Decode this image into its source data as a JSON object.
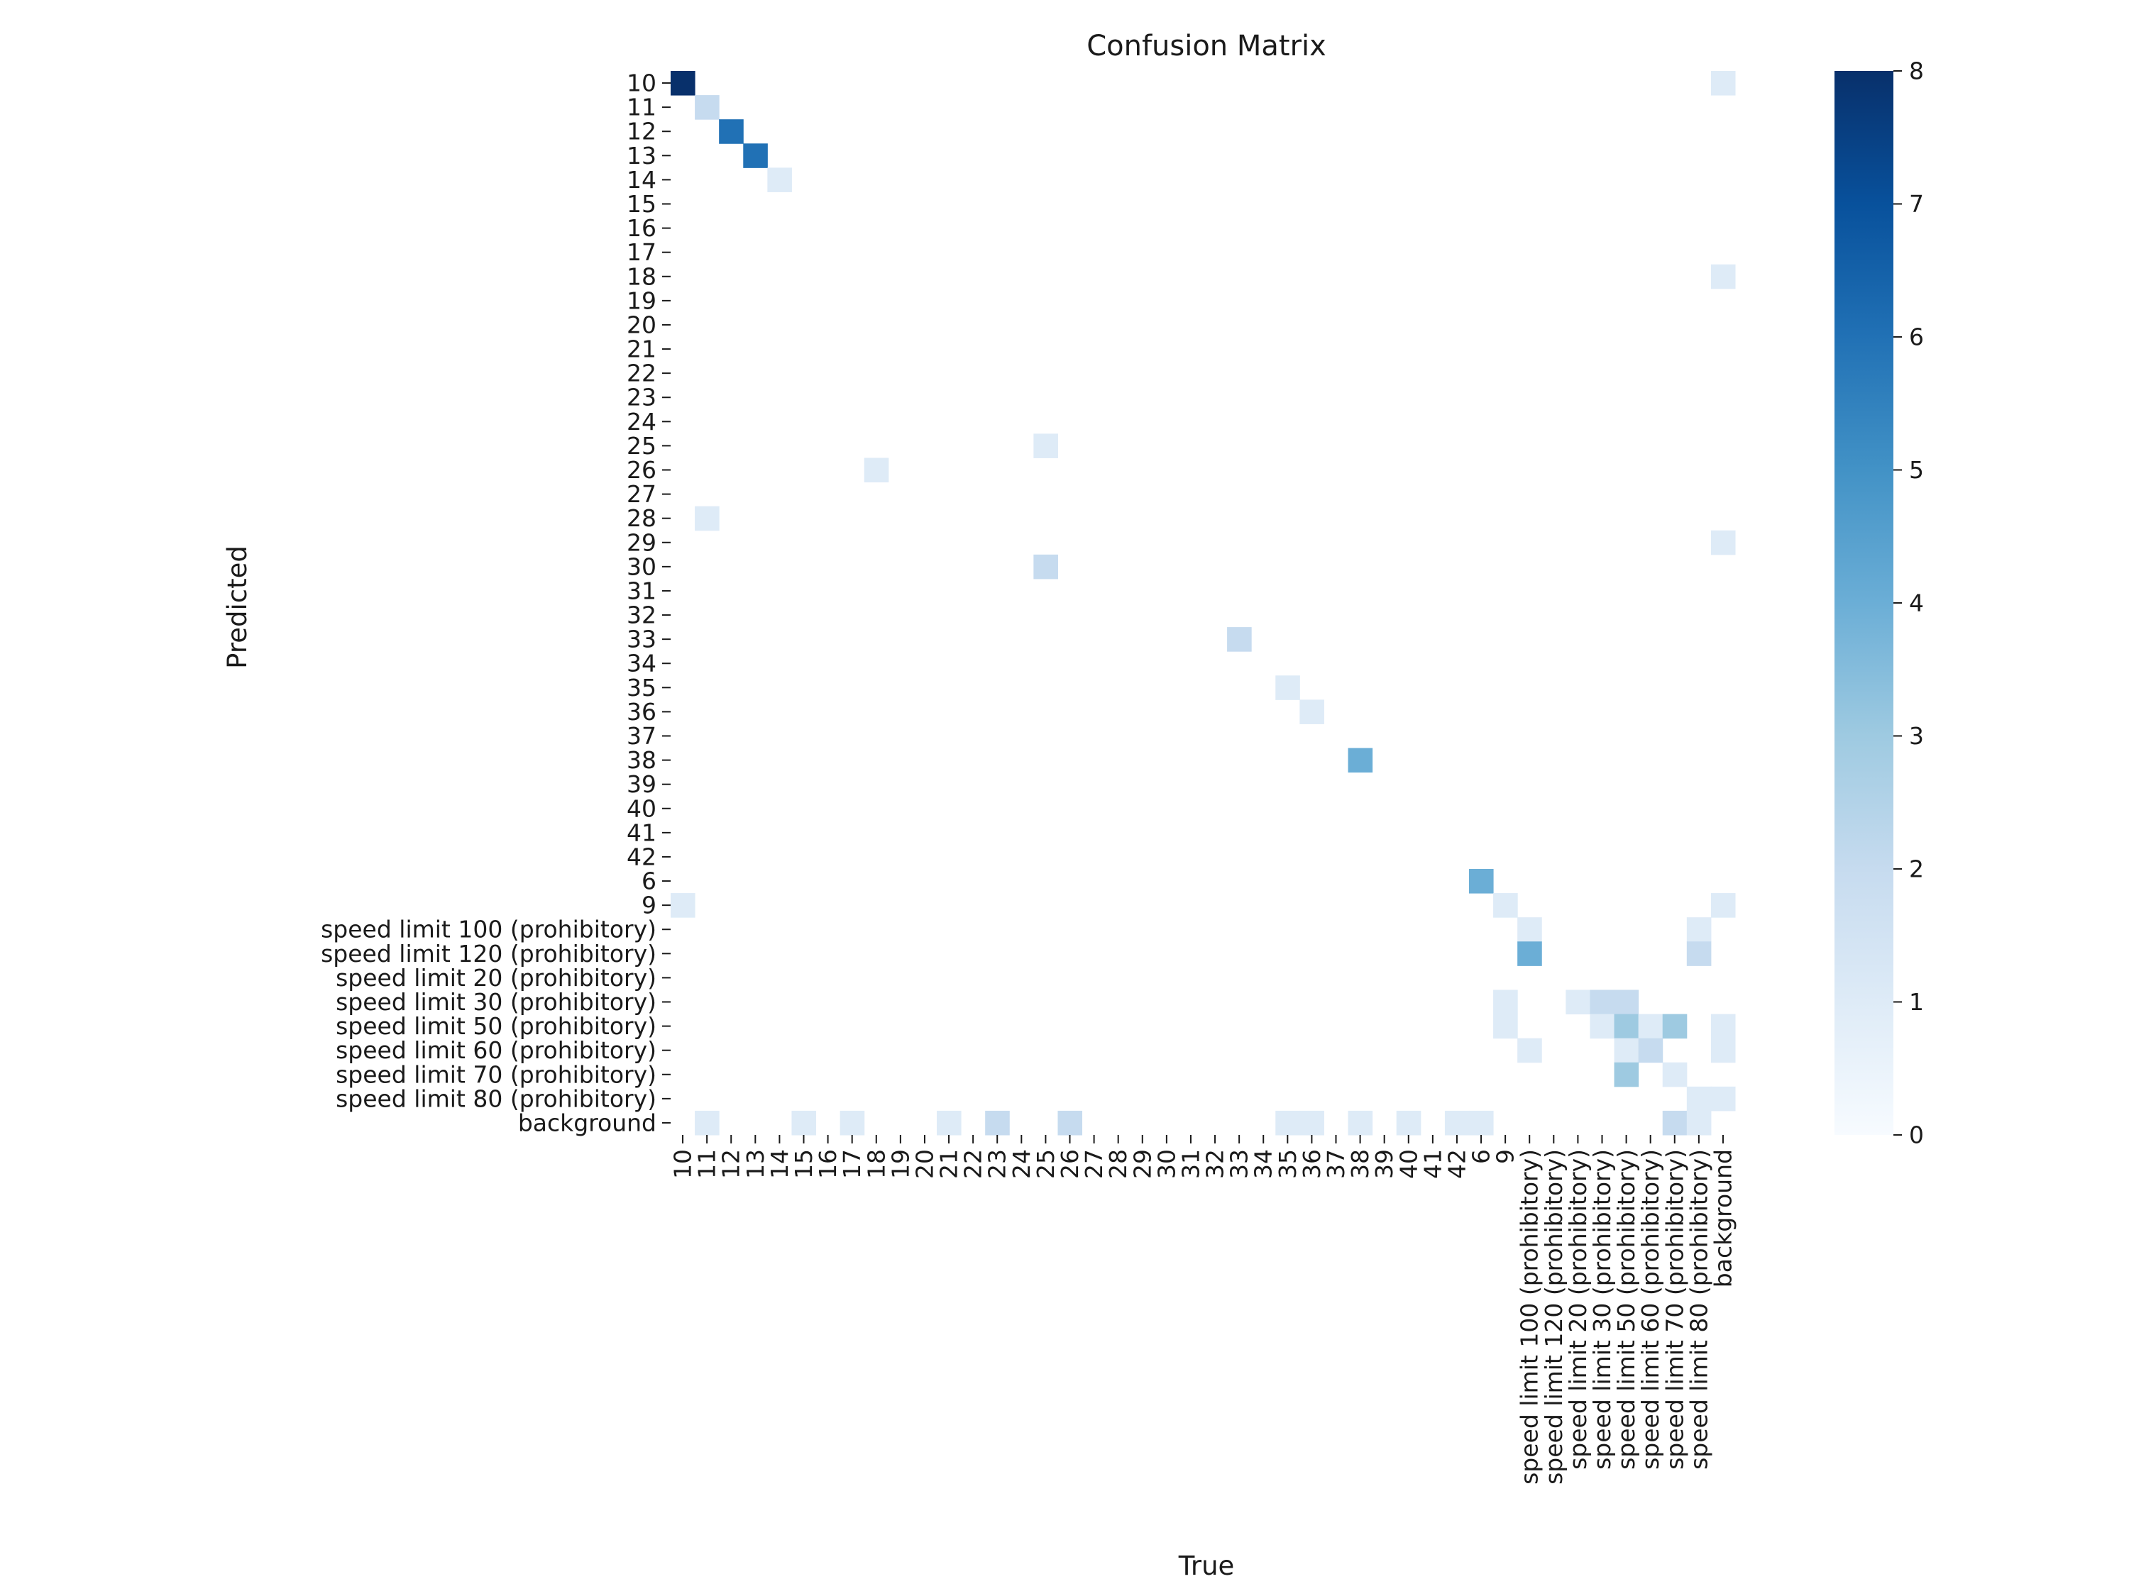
{
  "chart_data": {
    "type": "heatmap",
    "title": "Confusion Matrix",
    "xlabel": "True",
    "ylabel": "Predicted",
    "labels": [
      "10",
      "11",
      "12",
      "13",
      "14",
      "15",
      "16",
      "17",
      "18",
      "19",
      "20",
      "21",
      "22",
      "23",
      "24",
      "25",
      "26",
      "27",
      "28",
      "29",
      "30",
      "31",
      "32",
      "33",
      "34",
      "35",
      "36",
      "37",
      "38",
      "39",
      "40",
      "41",
      "42",
      "6",
      "9",
      "speed limit 100 (prohibitory)",
      "speed limit 120 (prohibitory)",
      "speed limit 20 (prohibitory)",
      "speed limit 30 (prohibitory)",
      "speed limit 50 (prohibitory)",
      "speed limit 60 (prohibitory)",
      "speed limit 70 (prohibitory)",
      "speed limit 80 (prohibitory)",
      "background"
    ],
    "colorbar": {
      "range": [
        0,
        8
      ],
      "ticks": [
        "0",
        "1",
        "2",
        "3",
        "4",
        "5",
        "6",
        "7",
        "8"
      ],
      "colormap": "Blues",
      "color_low": "#f7fbff",
      "color_high": "#08306b"
    },
    "cells": [
      {
        "predicted": "10",
        "true": "10",
        "value": 8
      },
      {
        "predicted": "10",
        "true": "background",
        "value": 1
      },
      {
        "predicted": "11",
        "true": "11",
        "value": 2
      },
      {
        "predicted": "12",
        "true": "12",
        "value": 6
      },
      {
        "predicted": "13",
        "true": "13",
        "value": 6
      },
      {
        "predicted": "14",
        "true": "14",
        "value": 1
      },
      {
        "predicted": "18",
        "true": "background",
        "value": 1
      },
      {
        "predicted": "25",
        "true": "25",
        "value": 1
      },
      {
        "predicted": "26",
        "true": "18",
        "value": 1
      },
      {
        "predicted": "28",
        "true": "11",
        "value": 1
      },
      {
        "predicted": "29",
        "true": "background",
        "value": 1
      },
      {
        "predicted": "30",
        "true": "25",
        "value": 2
      },
      {
        "predicted": "33",
        "true": "33",
        "value": 2
      },
      {
        "predicted": "35",
        "true": "35",
        "value": 1
      },
      {
        "predicted": "36",
        "true": "36",
        "value": 1
      },
      {
        "predicted": "38",
        "true": "38",
        "value": 4
      },
      {
        "predicted": "6",
        "true": "6",
        "value": 4
      },
      {
        "predicted": "9",
        "true": "10",
        "value": 1
      },
      {
        "predicted": "9",
        "true": "9",
        "value": 1
      },
      {
        "predicted": "9",
        "true": "background",
        "value": 1
      },
      {
        "predicted": "speed limit 100 (prohibitory)",
        "true": "speed limit 100 (prohibitory)",
        "value": 1
      },
      {
        "predicted": "speed limit 100 (prohibitory)",
        "true": "speed limit 80 (prohibitory)",
        "value": 1
      },
      {
        "predicted": "speed limit 120 (prohibitory)",
        "true": "speed limit 100 (prohibitory)",
        "value": 4
      },
      {
        "predicted": "speed limit 120 (prohibitory)",
        "true": "speed limit 80 (prohibitory)",
        "value": 2
      },
      {
        "predicted": "speed limit 30 (prohibitory)",
        "true": "9",
        "value": 1
      },
      {
        "predicted": "speed limit 30 (prohibitory)",
        "true": "speed limit 20 (prohibitory)",
        "value": 1
      },
      {
        "predicted": "speed limit 30 (prohibitory)",
        "true": "speed limit 30 (prohibitory)",
        "value": 2
      },
      {
        "predicted": "speed limit 30 (prohibitory)",
        "true": "speed limit 50 (prohibitory)",
        "value": 2
      },
      {
        "predicted": "speed limit 50 (prohibitory)",
        "true": "9",
        "value": 1
      },
      {
        "predicted": "speed limit 50 (prohibitory)",
        "true": "speed limit 30 (prohibitory)",
        "value": 1
      },
      {
        "predicted": "speed limit 50 (prohibitory)",
        "true": "speed limit 50 (prohibitory)",
        "value": 3
      },
      {
        "predicted": "speed limit 50 (prohibitory)",
        "true": "speed limit 60 (prohibitory)",
        "value": 1
      },
      {
        "predicted": "speed limit 50 (prohibitory)",
        "true": "speed limit 70 (prohibitory)",
        "value": 3
      },
      {
        "predicted": "speed limit 50 (prohibitory)",
        "true": "background",
        "value": 1
      },
      {
        "predicted": "speed limit 60 (prohibitory)",
        "true": "speed limit 100 (prohibitory)",
        "value": 1
      },
      {
        "predicted": "speed limit 60 (prohibitory)",
        "true": "speed limit 50 (prohibitory)",
        "value": 1
      },
      {
        "predicted": "speed limit 60 (prohibitory)",
        "true": "speed limit 60 (prohibitory)",
        "value": 2
      },
      {
        "predicted": "speed limit 60 (prohibitory)",
        "true": "background",
        "value": 1
      },
      {
        "predicted": "speed limit 70 (prohibitory)",
        "true": "speed limit 50 (prohibitory)",
        "value": 3
      },
      {
        "predicted": "speed limit 70 (prohibitory)",
        "true": "speed limit 70 (prohibitory)",
        "value": 1
      },
      {
        "predicted": "speed limit 80 (prohibitory)",
        "true": "speed limit 80 (prohibitory)",
        "value": 1
      },
      {
        "predicted": "speed limit 80 (prohibitory)",
        "true": "background",
        "value": 1
      },
      {
        "predicted": "background",
        "true": "11",
        "value": 1
      },
      {
        "predicted": "background",
        "true": "15",
        "value": 1
      },
      {
        "predicted": "background",
        "true": "17",
        "value": 1
      },
      {
        "predicted": "background",
        "true": "21",
        "value": 1
      },
      {
        "predicted": "background",
        "true": "23",
        "value": 2
      },
      {
        "predicted": "background",
        "true": "26",
        "value": 2
      },
      {
        "predicted": "background",
        "true": "35",
        "value": 1
      },
      {
        "predicted": "background",
        "true": "36",
        "value": 1
      },
      {
        "predicted": "background",
        "true": "38",
        "value": 1
      },
      {
        "predicted": "background",
        "true": "40",
        "value": 1
      },
      {
        "predicted": "background",
        "true": "42",
        "value": 1
      },
      {
        "predicted": "background",
        "true": "6",
        "value": 1
      },
      {
        "predicted": "background",
        "true": "speed limit 70 (prohibitory)",
        "value": 2
      },
      {
        "predicted": "background",
        "true": "speed limit 80 (prohibitory)",
        "value": 1
      }
    ]
  }
}
